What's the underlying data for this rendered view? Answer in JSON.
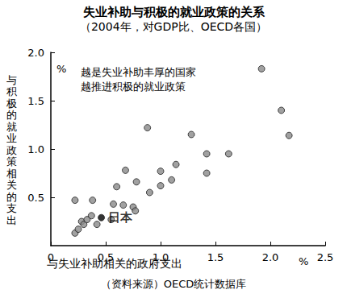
{
  "chart_data": {
    "type": "scatter",
    "title": "失业补助与积极的就业政策的关系",
    "subtitle": "（2004年，对GDP比、OECD各国）",
    "x_label": "与失业补助相关的政府支出",
    "y_label": "与积极的就业政策相关的支出",
    "x_unit": "%",
    "y_unit": "%",
    "annotations": [
      "越是失业补助丰厚的国家",
      "越推进积极的就业政策"
    ],
    "source": "（资料来源）OECD统计数据库",
    "marker": "circle",
    "grid": false,
    "xlim": [
      0,
      2.5
    ],
    "xticks": [
      0,
      0.5,
      {
        "value": 1,
        "label": "1.0"
      },
      1.5,
      {
        "value": 2,
        "label": "2.0"
      },
      2.5
    ],
    "ylim": [
      0,
      2.0
    ],
    "yticks": [
      0.5,
      {
        "value": 1,
        "label": "1.0"
      },
      1.5,
      {
        "value": 2,
        "label": "2.0"
      }
    ],
    "x": [
      0.22,
      0.22,
      0.25,
      0.28,
      0.3,
      0.33,
      0.37,
      0.38,
      0.42,
      0.46,
      0.55,
      0.57,
      0.6,
      0.66,
      0.68,
      0.75,
      0.77,
      0.78,
      0.88,
      0.9,
      1.0,
      1.0,
      1.1,
      1.14,
      1.28,
      1.42,
      1.42,
      1.62,
      1.92,
      2.1,
      2.17
    ],
    "values": [
      0.47,
      0.13,
      0.17,
      0.25,
      0.22,
      0.27,
      0.31,
      0.47,
      0.22,
      0.29,
      0.27,
      0.43,
      0.61,
      0.42,
      0.78,
      0.4,
      0.36,
      0.66,
      1.22,
      0.55,
      0.77,
      0.62,
      0.68,
      0.84,
      1.15,
      0.95,
      0.75,
      0.95,
      1.83,
      1.4,
      1.14
    ],
    "labels": [
      null,
      null,
      null,
      null,
      null,
      null,
      null,
      null,
      null,
      "日本",
      null,
      null,
      null,
      null,
      null,
      null,
      null,
      null,
      null,
      null,
      null,
      null,
      null,
      null,
      null,
      null,
      null,
      null,
      null,
      null,
      null
    ],
    "colors": [
      "#8a8a8a",
      "#8a8a8a",
      "#8a8a8a",
      "#8a8a8a",
      "#8a8a8a",
      "#8a8a8a",
      "#8a8a8a",
      "#8a8a8a",
      "#8a8a8a",
      "#000000",
      "#8a8a8a",
      "#8a8a8a",
      "#8a8a8a",
      "#8a8a8a",
      "#8a8a8a",
      "#8a8a8a",
      "#8a8a8a",
      "#8a8a8a",
      "#8a8a8a",
      "#8a8a8a",
      "#8a8a8a",
      "#8a8a8a",
      "#8a8a8a",
      "#8a8a8a",
      "#8a8a8a",
      "#8a8a8a",
      "#8a8a8a",
      "#8a8a8a",
      "#8a8a8a",
      "#8a8a8a",
      "#8a8a8a"
    ]
  }
}
